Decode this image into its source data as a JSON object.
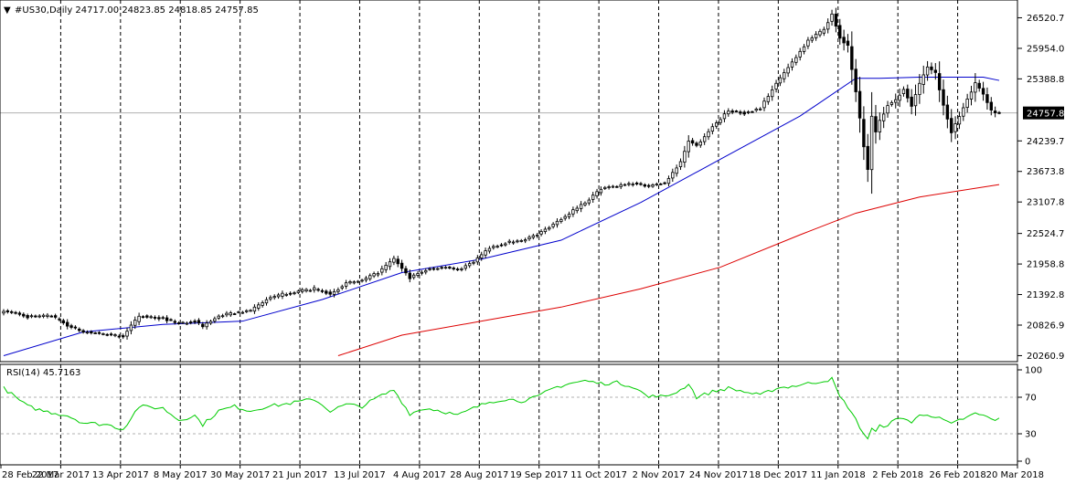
{
  "chart_data": [
    {
      "type": "candlestick",
      "title": "#US30,Daily  24717.00 24823.85 24818.85 24757.85",
      "symbol": "#US30",
      "timeframe": "Daily",
      "ohlc_readout": [
        24717.0,
        24823.85,
        24818.85,
        24757.85
      ],
      "current_price_label": "24757.85",
      "y_ticks": [
        "26520.70",
        "25954.05",
        "25388.80",
        "24239.75",
        "23673.80",
        "23107.85",
        "22524.70",
        "21958.80",
        "21392.85",
        "20826.90",
        "20260.95"
      ],
      "x_ticks": [
        "28 Feb 2017",
        "22 Mar 2017",
        "13 Apr 2017",
        "8 May 2017",
        "30 May 2017",
        "21 Jun 2017",
        "13 Jul 2017",
        "4 Aug 2017",
        "28 Aug 2017",
        "19 Sep 2017",
        "11 Oct 2017",
        "2 Nov 2017",
        "24 Nov 2017",
        "18 Dec 2017",
        "11 Jan 2018",
        "2 Feb 2018",
        "26 Feb 2018",
        "20 Mar 2018"
      ],
      "ylim": [
        20150,
        26850
      ],
      "grid": "vertical dashed",
      "close_trace": [
        [
          0,
          21100
        ],
        [
          6,
          20980
        ],
        [
          12,
          21000
        ],
        [
          16,
          20820
        ],
        [
          20,
          20700
        ],
        [
          26,
          20650
        ],
        [
          30,
          20620
        ],
        [
          34,
          21000
        ],
        [
          40,
          20950
        ],
        [
          44,
          20860
        ],
        [
          48,
          20900
        ],
        [
          50,
          20800
        ],
        [
          54,
          21000
        ],
        [
          58,
          21050
        ],
        [
          62,
          21100
        ],
        [
          66,
          21300
        ],
        [
          70,
          21400
        ],
        [
          74,
          21450
        ],
        [
          78,
          21500
        ],
        [
          82,
          21400
        ],
        [
          86,
          21600
        ],
        [
          90,
          21650
        ],
        [
          94,
          21800
        ],
        [
          98,
          22050
        ],
        [
          102,
          21700
        ],
        [
          106,
          21850
        ],
        [
          110,
          21900
        ],
        [
          114,
          21850
        ],
        [
          118,
          22000
        ],
        [
          122,
          22250
        ],
        [
          126,
          22350
        ],
        [
          130,
          22400
        ],
        [
          134,
          22500
        ],
        [
          138,
          22700
        ],
        [
          142,
          22900
        ],
        [
          146,
          23100
        ],
        [
          150,
          23350
        ],
        [
          154,
          23400
        ],
        [
          158,
          23450
        ],
        [
          162,
          23400
        ],
        [
          164,
          23450
        ],
        [
          166,
          23450
        ],
        [
          170,
          23850
        ],
        [
          172,
          24250
        ],
        [
          174,
          24150
        ],
        [
          178,
          24500
        ],
        [
          182,
          24800
        ],
        [
          186,
          24750
        ],
        [
          190,
          24850
        ],
        [
          194,
          25300
        ],
        [
          198,
          25700
        ],
        [
          202,
          26100
        ],
        [
          206,
          26300
        ],
        [
          208,
          26600
        ],
        [
          210,
          26150
        ],
        [
          212,
          26000
        ],
        [
          214,
          25150
        ],
        [
          216,
          24150
        ],
        [
          217,
          23700
        ],
        [
          218,
          24700
        ],
        [
          219,
          24400
        ],
        [
          220,
          24600
        ],
        [
          222,
          24900
        ],
        [
          224,
          25000
        ],
        [
          226,
          25200
        ],
        [
          228,
          24900
        ],
        [
          230,
          25300
        ],
        [
          232,
          25600
        ],
        [
          234,
          25500
        ],
        [
          236,
          24900
        ],
        [
          238,
          24400
        ],
        [
          240,
          24700
        ],
        [
          242,
          25000
        ],
        [
          244,
          25300
        ],
        [
          246,
          25100
        ],
        [
          248,
          24800
        ],
        [
          250,
          24757.85
        ]
      ],
      "series": [
        {
          "name": "",
          "color": "#0000cc",
          "values": [
            [
              0,
              20260
            ],
            [
              20,
              20700
            ],
            [
              40,
              20840
            ],
            [
              60,
              20900
            ],
            [
              80,
              21300
            ],
            [
              100,
              21800
            ],
            [
              120,
              22050
            ],
            [
              140,
              22400
            ],
            [
              160,
              23100
            ],
            [
              180,
              23900
            ],
            [
              200,
              24700
            ],
            [
              214,
              25400
            ],
            [
              220,
              25400
            ],
            [
              230,
              25420
            ],
            [
              246,
              25420
            ],
            [
              250,
              25360
            ]
          ]
        },
        {
          "name": "",
          "color": "#dd0000",
          "values": [
            [
              84,
              20260
            ],
            [
              100,
              20640
            ],
            [
              120,
              20900
            ],
            [
              140,
              21160
            ],
            [
              160,
              21500
            ],
            [
              180,
              21900
            ],
            [
              200,
              22500
            ],
            [
              214,
              22900
            ],
            [
              230,
              23200
            ],
            [
              250,
              23430
            ]
          ]
        }
      ]
    },
    {
      "type": "line",
      "title": "RSI(14) 45.7163",
      "y_ticks": [
        "100",
        "70",
        "30",
        "0"
      ],
      "ylim": [
        0,
        100
      ],
      "reference_lines": [
        70,
        30
      ],
      "series": [
        {
          "name": "RSI(14)",
          "color": "#00cc00",
          "values": [
            [
              0,
              80
            ],
            [
              6,
              60
            ],
            [
              10,
              55
            ],
            [
              16,
              50
            ],
            [
              20,
              42
            ],
            [
              26,
              40
            ],
            [
              30,
              35
            ],
            [
              34,
              60
            ],
            [
              40,
              58
            ],
            [
              44,
              45
            ],
            [
              48,
              50
            ],
            [
              50,
              40
            ],
            [
              54,
              55
            ],
            [
              58,
              60
            ],
            [
              62,
              55
            ],
            [
              66,
              60
            ],
            [
              70,
              62
            ],
            [
              74,
              65
            ],
            [
              78,
              68
            ],
            [
              82,
              55
            ],
            [
              86,
              62
            ],
            [
              90,
              60
            ],
            [
              94,
              70
            ],
            [
              98,
              78
            ],
            [
              102,
              52
            ],
            [
              106,
              58
            ],
            [
              110,
              55
            ],
            [
              114,
              50
            ],
            [
              118,
              58
            ],
            [
              122,
              65
            ],
            [
              126,
              68
            ],
            [
              130,
              66
            ],
            [
              134,
              70
            ],
            [
              138,
              80
            ],
            [
              142,
              85
            ],
            [
              146,
              88
            ],
            [
              150,
              85
            ],
            [
              154,
              86
            ],
            [
              158,
              82
            ],
            [
              162,
              70
            ],
            [
              164,
              72
            ],
            [
              166,
              70
            ],
            [
              170,
              78
            ],
            [
              172,
              85
            ],
            [
              174,
              70
            ],
            [
              178,
              76
            ],
            [
              182,
              80
            ],
            [
              186,
              76
            ],
            [
              190,
              72
            ],
            [
              194,
              80
            ],
            [
              198,
              82
            ],
            [
              202,
              85
            ],
            [
              206,
              88
            ],
            [
              208,
              90
            ],
            [
              210,
              70
            ],
            [
              212,
              60
            ],
            [
              214,
              45
            ],
            [
              216,
              30
            ],
            [
              217,
              25
            ],
            [
              218,
              35
            ],
            [
              219,
              32
            ],
            [
              220,
              38
            ],
            [
              222,
              40
            ],
            [
              224,
              45
            ],
            [
              226,
              48
            ],
            [
              228,
              42
            ],
            [
              230,
              50
            ],
            [
              232,
              52
            ],
            [
              234,
              48
            ],
            [
              236,
              45
            ],
            [
              238,
              40
            ],
            [
              240,
              45
            ],
            [
              242,
              48
            ],
            [
              244,
              52
            ],
            [
              246,
              50
            ],
            [
              248,
              46
            ],
            [
              250,
              45.7163
            ]
          ]
        }
      ]
    }
  ]
}
